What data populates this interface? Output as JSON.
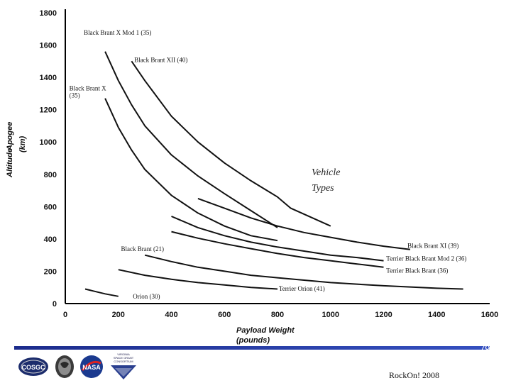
{
  "chart_data": {
    "type": "line",
    "xlabel_lines": [
      "Payload Weight",
      "(pounds)"
    ],
    "ylabel_lines": [
      "Apogee",
      "Altitude",
      "(km)"
    ],
    "xlim": [
      0,
      1600
    ],
    "ylim": [
      0,
      1800
    ],
    "x_ticks": [
      "0",
      "200",
      "400",
      "600",
      "800",
      "1000",
      "1200",
      "1400",
      "1600"
    ],
    "y_ticks": [
      "0",
      "200",
      "400",
      "600",
      "800",
      "1000",
      "1200",
      "1400",
      "1600",
      "1800"
    ],
    "legend_title_lines": [
      "Vehicle",
      "Types"
    ],
    "series": [
      {
        "name": "Black Brant X Mod 1 (35)",
        "x": [
          150,
          200,
          250,
          300,
          400,
          500,
          600,
          700,
          800
        ],
        "y": [
          1560,
          1380,
          1230,
          1100,
          920,
          790,
          680,
          575,
          470
        ]
      },
      {
        "name": "Black Brant XII (40)",
        "x": [
          250,
          300,
          400,
          500,
          600,
          700,
          800,
          850,
          1000
        ],
        "y": [
          1500,
          1380,
          1160,
          1000,
          870,
          760,
          660,
          590,
          480
        ]
      },
      {
        "name": "Black Brant X (35)",
        "x": [
          150,
          200,
          250,
          300,
          400,
          500,
          600,
          700,
          800
        ],
        "y": [
          1270,
          1090,
          950,
          830,
          670,
          560,
          480,
          420,
          390
        ]
      },
      {
        "name": "Black Brant XI (39)",
        "x": [
          500,
          600,
          700,
          800,
          900,
          1000,
          1100,
          1200,
          1300
        ],
        "y": [
          650,
          590,
          530,
          480,
          440,
          410,
          380,
          355,
          335
        ]
      },
      {
        "name": "Terrier Black Brant Mod 2 (36)",
        "x": [
          400,
          500,
          600,
          700,
          800,
          900,
          1000,
          1100,
          1200
        ],
        "y": [
          540,
          470,
          420,
          380,
          350,
          325,
          300,
          285,
          265
        ]
      },
      {
        "name": "Terrier Black Brant (36)",
        "x": [
          400,
          500,
          600,
          700,
          800,
          900,
          1000,
          1100,
          1200
        ],
        "y": [
          445,
          405,
          370,
          340,
          310,
          285,
          265,
          245,
          225
        ]
      },
      {
        "name": "Black Brant (21)",
        "x": [
          300,
          400,
          500,
          600,
          700,
          800,
          900,
          1000,
          1200,
          1400,
          1500
        ],
        "y": [
          300,
          260,
          225,
          200,
          175,
          160,
          145,
          130,
          110,
          95,
          90
        ]
      },
      {
        "name": "Terrier Orion (41)",
        "x": [
          200,
          300,
          400,
          500,
          600,
          700,
          800
        ],
        "y": [
          210,
          175,
          150,
          130,
          115,
          100,
          90
        ]
      },
      {
        "name": "Orion (30)",
        "x": [
          75,
          100,
          150,
          200
        ],
        "y": [
          90,
          80,
          60,
          45
        ]
      }
    ],
    "labels": [
      {
        "text": "Black Brant X Mod 1 (35)",
        "x": 70,
        "y": 1665,
        "anchor": "start"
      },
      {
        "text": "Black Brant XII (40)",
        "x": 260,
        "y": 1495,
        "anchor": "start"
      },
      {
        "text": "Black Brant X",
        "x": 15,
        "y": 1320,
        "anchor": "start"
      },
      {
        "text": "(35)",
        "x": 15,
        "y": 1275,
        "anchor": "start"
      },
      {
        "text": "Black Brant XI (39)",
        "x": 1290,
        "y": 345,
        "anchor": "start"
      },
      {
        "text": "Terrier Black Brant Mod 2 (36)",
        "x": 1210,
        "y": 265,
        "anchor": "start"
      },
      {
        "text": "Terrier Black Brant (36)",
        "x": 1210,
        "y": 190,
        "anchor": "start"
      },
      {
        "text": "Black Brant (21)",
        "x": 210,
        "y": 325,
        "anchor": "start"
      },
      {
        "text": "Terrier Orion (41)",
        "x": 805,
        "y": 80,
        "anchor": "start"
      },
      {
        "text": "Orion (30)",
        "x": 255,
        "y": 30,
        "anchor": "start"
      }
    ]
  },
  "footer": {
    "slide_number": "79",
    "text": "RockOn! 2008",
    "logo_1": "COSGC",
    "logo_4_lines": [
      "VIRGINIA",
      "SPACE GRANT",
      "CONSORTIUM"
    ]
  },
  "colors": {
    "footer_bar": "#1c2c8c",
    "curve": "#111111"
  },
  "icons": [
    "cosgc-logo",
    "seal-logo",
    "nasa-logo",
    "virginia-space-grant-logo"
  ]
}
